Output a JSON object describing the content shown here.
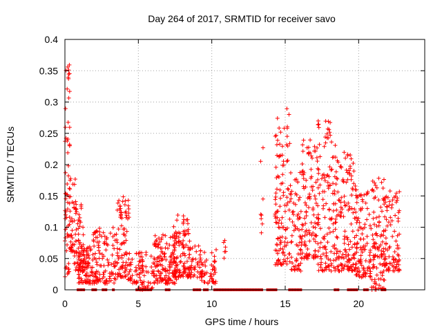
{
  "chart_data": {
    "type": "scatter",
    "title": "Day 264 of 2017, SRMTID for receiver savo",
    "xlabel": "GPS time / hours",
    "ylabel": "SRMTID / TECUs",
    "xlim": [
      0,
      24.5
    ],
    "ylim": [
      0,
      0.4
    ],
    "xticks": [
      0,
      5,
      10,
      15,
      20
    ],
    "xtick_labels": [
      "0",
      "5",
      "10",
      "15",
      "20"
    ],
    "yticks": [
      0,
      0.05,
      0.1,
      0.15,
      0.2,
      0.25,
      0.3,
      0.35,
      0.4
    ],
    "ytick_labels": [
      "0",
      "0.05",
      "0.1",
      "0.15",
      "0.2",
      "0.25",
      "0.3",
      "0.35",
      "0.4"
    ],
    "grid": true,
    "marker": "+",
    "color": "#ff0000",
    "zero_marker_color": "#cc0000",
    "series": [
      {
        "name": "SRMTID",
        "clusters": [
          {
            "x0": 0.0,
            "x1": 0.35,
            "ymin": 0.02,
            "ymax": 0.36,
            "n": 60
          },
          {
            "x0": 0.3,
            "x1": 0.8,
            "ymin": 0.06,
            "ymax": 0.18,
            "n": 45
          },
          {
            "x0": 0.6,
            "x1": 1.3,
            "ymin": 0.03,
            "ymax": 0.14,
            "n": 55
          },
          {
            "x0": 0.9,
            "x1": 1.9,
            "ymin": 0.01,
            "ymax": 0.07,
            "n": 90
          },
          {
            "x0": 1.9,
            "x1": 3.5,
            "ymin": 0.01,
            "ymax": 0.1,
            "n": 110
          },
          {
            "x0": 3.5,
            "x1": 4.4,
            "ymin": 0.02,
            "ymax": 0.15,
            "n": 90
          },
          {
            "x0": 4.3,
            "x1": 5.3,
            "ymin": 0.01,
            "ymax": 0.06,
            "n": 45
          },
          {
            "x0": 5.0,
            "x1": 6.0,
            "ymin": 0.0,
            "ymax": 0.06,
            "n": 35
          },
          {
            "x0": 6.0,
            "x1": 7.6,
            "ymin": 0.01,
            "ymax": 0.09,
            "n": 140
          },
          {
            "x0": 7.4,
            "x1": 8.5,
            "ymin": 0.02,
            "ymax": 0.12,
            "n": 110
          },
          {
            "x0": 8.3,
            "x1": 9.4,
            "ymin": 0.02,
            "ymax": 0.07,
            "n": 55
          },
          {
            "x0": 9.3,
            "x1": 10.3,
            "ymin": 0.01,
            "ymax": 0.07,
            "n": 45
          },
          {
            "x0": 10.8,
            "x1": 11.0,
            "ymin": 0.05,
            "ymax": 0.08,
            "n": 6
          },
          {
            "x0": 13.3,
            "x1": 13.5,
            "ymin": 0.09,
            "ymax": 0.23,
            "n": 8
          },
          {
            "x0": 14.3,
            "x1": 15.0,
            "ymin": 0.04,
            "ymax": 0.28,
            "n": 90
          },
          {
            "x0": 15.0,
            "x1": 15.4,
            "ymin": 0.04,
            "ymax": 0.3,
            "n": 35
          },
          {
            "x0": 15.4,
            "x1": 16.1,
            "ymin": 0.03,
            "ymax": 0.19,
            "n": 60
          },
          {
            "x0": 16.1,
            "x1": 17.2,
            "ymin": 0.05,
            "ymax": 0.24,
            "n": 110
          },
          {
            "x0": 17.2,
            "x1": 18.6,
            "ymin": 0.03,
            "ymax": 0.27,
            "n": 150
          },
          {
            "x0": 18.6,
            "x1": 19.8,
            "ymin": 0.03,
            "ymax": 0.22,
            "n": 130
          },
          {
            "x0": 19.8,
            "x1": 20.8,
            "ymin": 0.02,
            "ymax": 0.16,
            "n": 100
          },
          {
            "x0": 20.8,
            "x1": 21.8,
            "ymin": 0.0,
            "ymax": 0.18,
            "n": 110
          },
          {
            "x0": 21.8,
            "x1": 22.8,
            "ymin": 0.03,
            "ymax": 0.16,
            "n": 90
          }
        ],
        "zero_segments": [
          [
            0.9,
            1.3
          ],
          [
            1.9,
            2.1
          ],
          [
            2.6,
            2.8
          ],
          [
            3.3,
            3.4
          ],
          [
            4.9,
            5.9
          ],
          [
            6.9,
            7.1
          ],
          [
            8.8,
            9.2
          ],
          [
            9.5,
            9.7
          ],
          [
            10.2,
            13.4
          ],
          [
            13.8,
            14.5
          ],
          [
            15.3,
            16.2
          ],
          [
            18.4,
            18.6
          ],
          [
            19.3,
            19.9
          ],
          [
            20.4,
            20.6
          ],
          [
            21.6,
            21.9
          ]
        ]
      }
    ]
  }
}
